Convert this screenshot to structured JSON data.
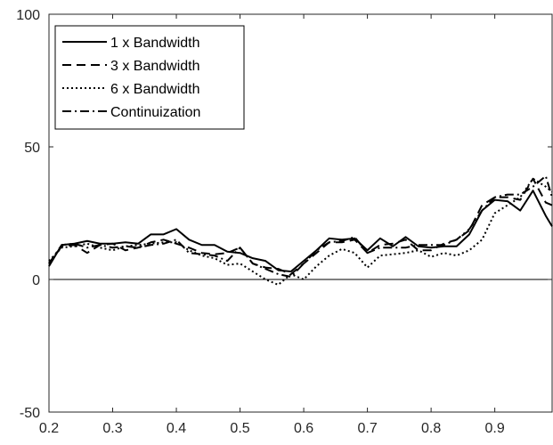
{
  "chart_data": {
    "type": "line",
    "title": "",
    "xlabel": "",
    "ylabel": "",
    "xlim": [
      0.2,
      0.99
    ],
    "ylim": [
      -50,
      100
    ],
    "xticks": [
      0.2,
      0.3,
      0.4,
      0.5,
      0.6,
      0.7,
      0.8,
      0.9
    ],
    "xtick_labels": [
      "0.2",
      "0.3",
      "0.4",
      "0.5",
      "0.6",
      "0.7",
      "0.8",
      "0.9"
    ],
    "yticks": [
      -50,
      0,
      50,
      100
    ],
    "ytick_labels": [
      "-50",
      "0",
      "50",
      "100"
    ],
    "grid": false,
    "legend_position": "top-left",
    "reference_line_y": 0,
    "x": [
      0.2,
      0.22,
      0.24,
      0.26,
      0.28,
      0.3,
      0.32,
      0.34,
      0.36,
      0.38,
      0.4,
      0.42,
      0.44,
      0.46,
      0.48,
      0.5,
      0.52,
      0.54,
      0.56,
      0.58,
      0.6,
      0.62,
      0.64,
      0.66,
      0.68,
      0.7,
      0.72,
      0.74,
      0.76,
      0.78,
      0.8,
      0.82,
      0.84,
      0.86,
      0.88,
      0.9,
      0.92,
      0.94,
      0.96,
      0.98,
      0.99
    ],
    "series": [
      {
        "name": "1 x Bandwidth",
        "dash": "",
        "values": [
          5,
          13,
          13.5,
          14.5,
          13.5,
          13.5,
          14,
          13.5,
          17,
          17,
          19,
          15,
          13,
          13,
          10.5,
          10,
          8,
          7,
          3.5,
          3,
          7,
          11,
          15.5,
          15,
          15.5,
          11,
          15.5,
          12.5,
          16,
          12.5,
          12,
          12.5,
          12.5,
          17,
          26,
          30,
          29.5,
          26,
          33.5,
          24,
          20
        ]
      },
      {
        "name": "3 x Bandwidth",
        "dash": "10,6",
        "values": [
          6,
          12.5,
          13,
          10,
          13,
          13.5,
          11,
          12,
          14,
          15,
          13.5,
          12,
          10,
          9.5,
          10,
          12,
          6,
          4.5,
          4,
          2,
          6,
          10,
          14,
          14,
          15,
          10,
          13,
          13.5,
          15,
          11,
          11,
          13.5,
          15,
          18.5,
          28,
          31,
          31,
          30,
          38,
          29,
          28
        ]
      },
      {
        "name": "6 x Bandwidth",
        "dash": "2,3",
        "values": [
          7,
          12,
          12.5,
          13.5,
          12,
          11,
          12.5,
          13,
          13.5,
          14,
          14,
          11,
          9,
          8,
          5.5,
          6,
          3,
          0,
          -2,
          2,
          0,
          5,
          9,
          11.5,
          10,
          4.5,
          9,
          9.5,
          10,
          11,
          8.5,
          10,
          9,
          11,
          15,
          25,
          28,
          31,
          38,
          35,
          33
        ]
      },
      {
        "name": "Continuization",
        "dash": "10,4,2,4",
        "values": [
          6,
          13,
          13.5,
          12,
          13,
          12,
          12.5,
          12,
          13,
          13.5,
          15,
          10,
          9.5,
          9,
          7,
          12,
          6,
          4,
          2,
          1,
          6,
          11,
          14,
          14.5,
          16,
          10,
          12,
          12,
          12,
          13,
          13,
          13,
          15,
          19,
          26,
          31,
          32,
          32,
          35,
          39,
          31
        ]
      }
    ]
  }
}
